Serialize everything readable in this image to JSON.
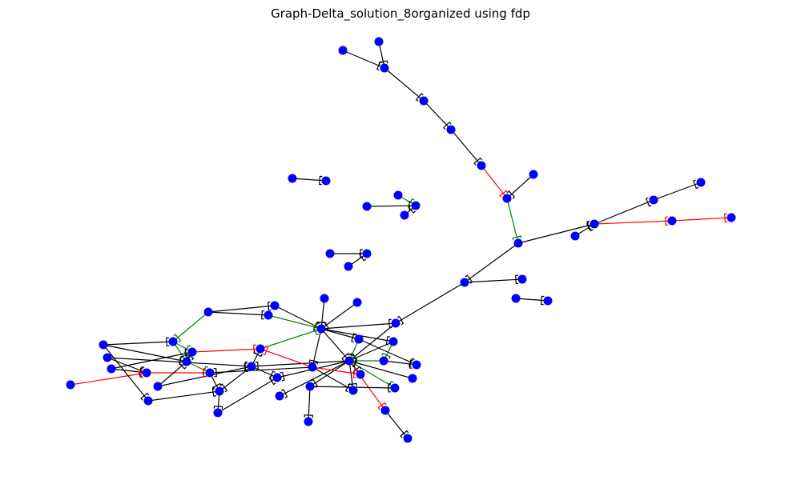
{
  "title": "Graph-Delta_solution_8organized using fdp",
  "colors": {
    "background": "#ffffff",
    "node": "#0000ff",
    "edge_default": "#000000",
    "edge_green": "#008000",
    "edge_red": "#ff0000"
  }
}
